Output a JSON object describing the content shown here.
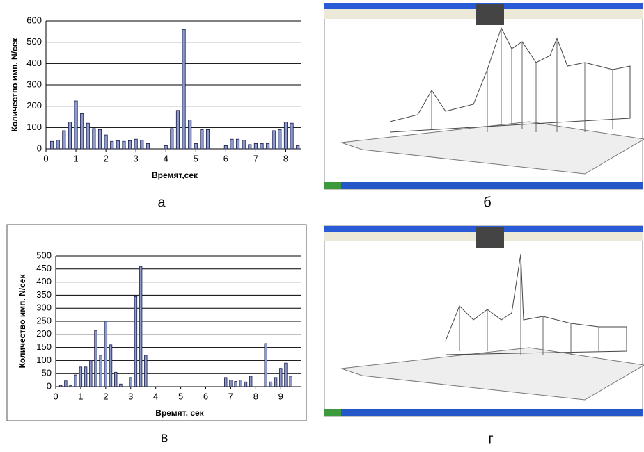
{
  "chart_data": [
    {
      "type": "bar",
      "y_label": "Количество имп. N/сек",
      "x_label": "Времят,сек",
      "x": [
        0.2,
        0.4,
        0.6,
        0.8,
        1.0,
        1.2,
        1.4,
        1.6,
        1.8,
        2.0,
        2.2,
        2.4,
        2.6,
        2.8,
        3.0,
        3.2,
        3.4,
        4.0,
        4.2,
        4.4,
        4.6,
        4.8,
        5.0,
        5.2,
        5.4,
        6.0,
        6.2,
        6.4,
        6.6,
        6.8,
        7.0,
        7.2,
        7.4,
        7.6,
        7.8,
        8.0,
        8.2,
        8.4
      ],
      "values": [
        35,
        40,
        85,
        125,
        225,
        165,
        120,
        95,
        90,
        65,
        35,
        38,
        35,
        38,
        45,
        40,
        25,
        15,
        95,
        180,
        560,
        135,
        25,
        90,
        90,
        15,
        45,
        45,
        40,
        20,
        25,
        25,
        25,
        85,
        90,
        125,
        120,
        15
      ],
      "color": "#8c9bc8",
      "xlim": [
        0,
        8.5
      ],
      "ylim": [
        0,
        600
      ],
      "xticks": [
        0,
        1,
        2,
        3,
        4,
        5,
        6,
        7,
        8
      ],
      "yticks": [
        0,
        100,
        200,
        300,
        400,
        500,
        600
      ],
      "grid": true
    },
    {
      "type": "bar",
      "y_label": "Количество имп. N/сек",
      "x_label": "Времят, сек",
      "x": [
        0.2,
        0.4,
        0.6,
        0.8,
        1.0,
        1.2,
        1.4,
        1.6,
        1.8,
        2.0,
        2.2,
        2.4,
        2.6,
        3.0,
        3.2,
        3.4,
        3.6,
        6.8,
        7.0,
        7.2,
        7.4,
        7.6,
        7.8,
        8.4,
        8.6,
        8.8,
        9.0,
        9.2,
        9.4
      ],
      "values": [
        5,
        22,
        5,
        45,
        75,
        75,
        100,
        215,
        120,
        250,
        160,
        55,
        10,
        35,
        345,
        460,
        120,
        35,
        25,
        20,
        25,
        18,
        40,
        165,
        18,
        35,
        70,
        90,
        40
      ],
      "color": "#8c9bc8",
      "xlim": [
        0,
        9.8
      ],
      "ylim": [
        0,
        500
      ],
      "xticks": [
        0,
        1,
        2,
        3,
        4,
        5,
        6,
        7,
        8,
        9
      ],
      "yticks": [
        0,
        50,
        100,
        150,
        200,
        250,
        300,
        350,
        400,
        450,
        500
      ],
      "grid": true
    }
  ],
  "panel_labels": [
    "а",
    "б",
    "в",
    "г"
  ]
}
